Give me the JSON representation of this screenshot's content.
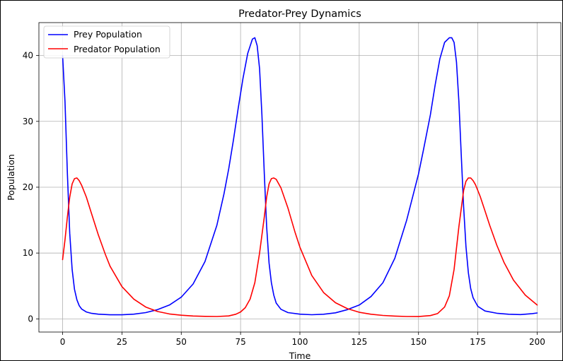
{
  "chart_data": {
    "type": "line",
    "title": "Predator-Prey Dynamics",
    "xlabel": "Time",
    "ylabel": "Population",
    "xlim": [
      -10,
      210
    ],
    "ylim": [
      -2,
      45
    ],
    "xticks": [
      0,
      25,
      50,
      75,
      100,
      125,
      150,
      175,
      200
    ],
    "yticks": [
      0,
      10,
      20,
      30,
      40
    ],
    "grid": true,
    "legend_position": "top-left",
    "series": [
      {
        "name": "Prey Population",
        "color": "#0000ff",
        "x": [
          0,
          1,
          2,
          3,
          4,
          5,
          6,
          7,
          8,
          10,
          12,
          15,
          20,
          25,
          30,
          35,
          40,
          45,
          50,
          55,
          60,
          65,
          68,
          70,
          72,
          74,
          76,
          78,
          80,
          81,
          82,
          83,
          84,
          85,
          86,
          87,
          88,
          89,
          90,
          92,
          95,
          100,
          105,
          110,
          115,
          120,
          125,
          130,
          135,
          140,
          145,
          150,
          152,
          155,
          157,
          159,
          161,
          163,
          164,
          165,
          166,
          167,
          168,
          169,
          170,
          171,
          172,
          173,
          175,
          178,
          183,
          188,
          193,
          198,
          200
        ],
        "values": [
          40,
          33,
          22,
          13,
          7.5,
          4.5,
          2.9,
          2.0,
          1.5,
          1.05,
          0.85,
          0.72,
          0.62,
          0.62,
          0.72,
          0.95,
          1.4,
          2.1,
          3.3,
          5.3,
          8.7,
          14.2,
          19.0,
          22.8,
          27.2,
          32.0,
          36.5,
          40.3,
          42.5,
          42.7,
          41.5,
          38.0,
          31.0,
          22.0,
          14.0,
          8.5,
          5.5,
          3.6,
          2.4,
          1.45,
          0.95,
          0.72,
          0.63,
          0.7,
          0.92,
          1.4,
          2.1,
          3.4,
          5.5,
          9.2,
          15.0,
          22.0,
          25.5,
          31.0,
          35.5,
          39.5,
          42.0,
          42.7,
          42.7,
          42.0,
          39.0,
          33.0,
          25.0,
          17.0,
          11.0,
          7.0,
          4.6,
          3.2,
          1.9,
          1.2,
          0.85,
          0.7,
          0.65,
          0.8,
          0.9
        ]
      },
      {
        "name": "Predator Population",
        "color": "#ff0000",
        "x": [
          0,
          1,
          2,
          3,
          4,
          5,
          6,
          7,
          8,
          10,
          12,
          15,
          18,
          20,
          25,
          30,
          35,
          40,
          45,
          50,
          55,
          60,
          65,
          70,
          73,
          75,
          77,
          79,
          81,
          83,
          85,
          86,
          87,
          88,
          89,
          90,
          92,
          95,
          98,
          100,
          105,
          110,
          115,
          120,
          125,
          130,
          135,
          140,
          145,
          150,
          155,
          158,
          161,
          163,
          165,
          167,
          169,
          170,
          171,
          172,
          173,
          174,
          176,
          178,
          180,
          183,
          186,
          190,
          195,
          200
        ],
        "values": [
          9,
          12,
          15.5,
          18.5,
          20.5,
          21.3,
          21.4,
          21.0,
          20.3,
          18.5,
          16.2,
          12.8,
          9.8,
          8.0,
          4.9,
          3.0,
          1.8,
          1.12,
          0.75,
          0.55,
          0.44,
          0.38,
          0.36,
          0.45,
          0.7,
          1.05,
          1.7,
          3.0,
          5.5,
          10.0,
          15.5,
          18.5,
          20.5,
          21.3,
          21.4,
          21.2,
          19.9,
          16.8,
          13.1,
          10.9,
          6.6,
          4.0,
          2.45,
          1.55,
          1.0,
          0.7,
          0.52,
          0.42,
          0.36,
          0.35,
          0.5,
          0.8,
          1.8,
          3.5,
          7.5,
          14.0,
          19.5,
          20.9,
          21.4,
          21.4,
          21.0,
          20.4,
          18.6,
          16.4,
          14.2,
          11.2,
          8.6,
          5.9,
          3.6,
          2.1
        ]
      }
    ]
  }
}
